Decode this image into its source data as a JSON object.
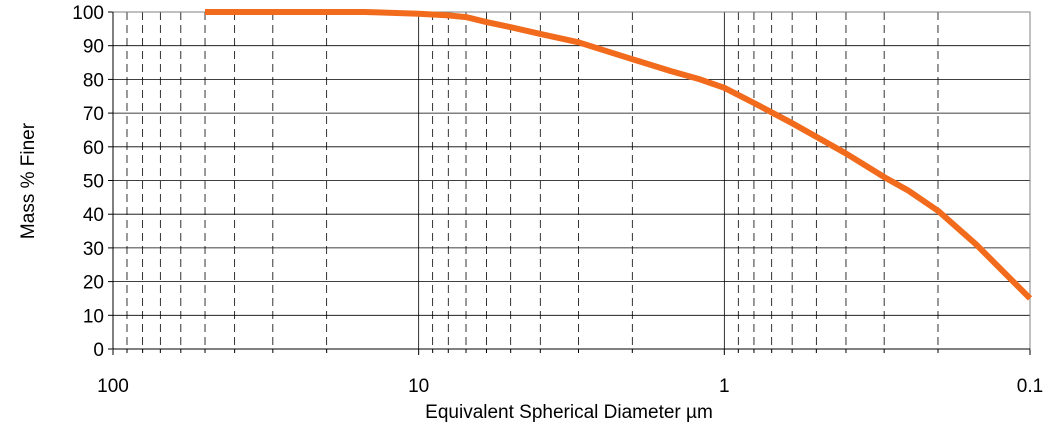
{
  "chart_data": {
    "type": "line",
    "title": "",
    "xlabel": "Equivalent Spherical Diameter µm",
    "ylabel": "Mass %  Finer",
    "x_scale": "log",
    "x_reversed": true,
    "xlim": [
      100,
      0.1
    ],
    "ylim": [
      0,
      100
    ],
    "x_tick_labels": [
      "100",
      "10",
      "1",
      "0.1"
    ],
    "y_tick_labels": [
      "0",
      "10",
      "20",
      "30",
      "40",
      "50",
      "60",
      "70",
      "80",
      "90",
      "100"
    ],
    "grid": "horizontal major lines, vertical solid at decades and dashed at minor log ticks",
    "legend": "none",
    "series": [
      {
        "color": "#f26b1d",
        "x": [
          50,
          40,
          30,
          20,
          15,
          10,
          8,
          7,
          6,
          5,
          4,
          3,
          2,
          1.5,
          1.2,
          1,
          0.8,
          0.6,
          0.5,
          0.4,
          0.3,
          0.25,
          0.2,
          0.15,
          0.1
        ],
        "y": [
          100,
          100,
          100,
          100,
          100,
          99.5,
          99,
          98.5,
          97,
          95.5,
          93.5,
          91,
          86,
          82.5,
          80,
          77.5,
          73,
          67,
          63,
          58,
          51,
          47,
          41,
          31,
          15
        ]
      }
    ]
  }
}
